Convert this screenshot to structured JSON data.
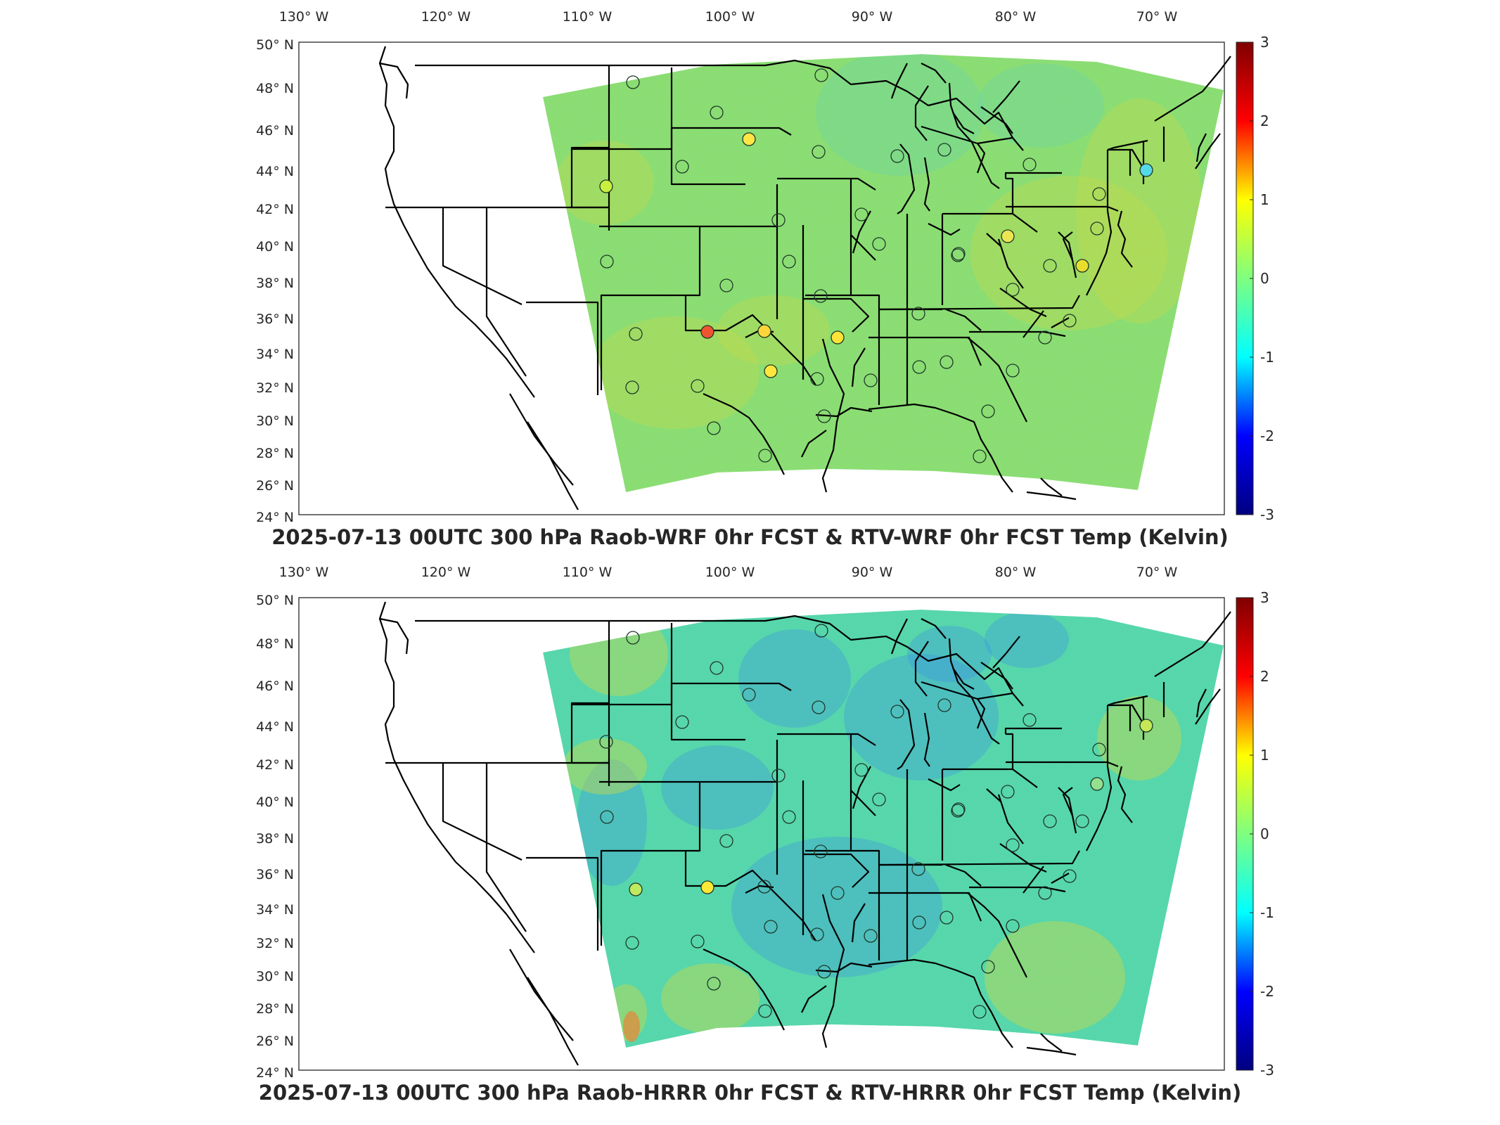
{
  "maps": [
    {
      "title": "2025-07-13 00UTC 300 hPa Raob-WRF 0hr FCST & RTV-WRF 0hr FCST Temp (Kelvin)",
      "variant": "wrf"
    },
    {
      "title": "2025-07-13 00UTC 300 hPa Raob-HRRR 0hr FCST & RTV-HRRR 0hr FCST Temp (Kelvin)",
      "variant": "hrrr"
    }
  ],
  "lon_labels": [
    "130° W",
    "120° W",
    "110° W",
    "100° W",
    "90° W",
    "80° W",
    "70° W"
  ],
  "lat_labels": [
    "50° N",
    "48° N",
    "46° N",
    "44° N",
    "42° N",
    "40° N",
    "38° N",
    "36° N",
    "34° N",
    "32° N",
    "30° N",
    "28° N",
    "26° N",
    "24° N"
  ],
  "colorbar": {
    "ticks": [
      "3",
      "2",
      "1",
      "0",
      "-1",
      "-2",
      "-3"
    ],
    "range": [
      -3,
      3
    ],
    "colors": [
      "#7f0000",
      "#ff0000",
      "#ffff00",
      "#7fff7f",
      "#00ffff",
      "#0000ff",
      "#00007f"
    ]
  },
  "colors": {
    "field_wrf": "#8ee86c",
    "field_hrrr": "#4fe0b0",
    "cold_patch": "#2e8ef0",
    "warm_patch": "#d6e23a",
    "boundary": "#000000"
  }
}
